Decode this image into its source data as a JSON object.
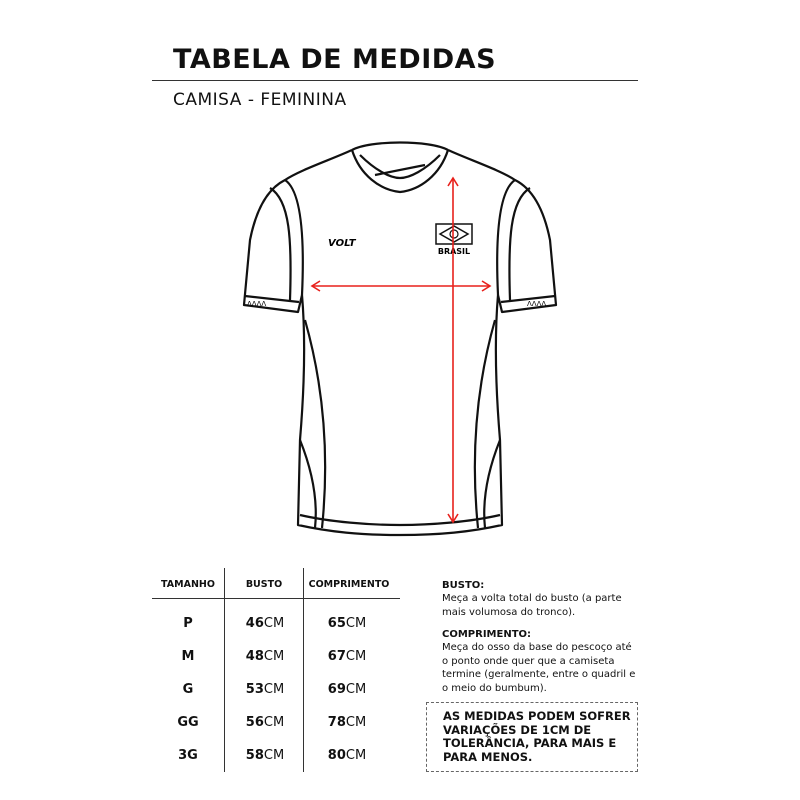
{
  "header": {
    "title": "TABELA DE MEDIDAS",
    "subtitle": "CAMISA - FEMININA"
  },
  "shirt": {
    "brand_logo": "VOLT",
    "badge_text": "BRASIL",
    "arrow_color": "#e8211c"
  },
  "table": {
    "headers": [
      "TAMANHO",
      "BUSTO",
      "COMPRIMENTO"
    ],
    "unit": "CM",
    "rows": [
      {
        "size": "P",
        "busto": "46",
        "comprimento": "65"
      },
      {
        "size": "M",
        "busto": "48",
        "comprimento": "67"
      },
      {
        "size": "G",
        "busto": "53",
        "comprimento": "69"
      },
      {
        "size": "GG",
        "busto": "56",
        "comprimento": "78"
      },
      {
        "size": "3G",
        "busto": "58",
        "comprimento": "80"
      }
    ]
  },
  "instructions": {
    "busto_label": "BUSTO:",
    "busto_text": "Meça a volta total do busto (a parte mais volumosa do tronco).",
    "comprimento_label": "COMPRIMENTO:",
    "comprimento_text": "Meça do osso da base do pescoço até o ponto onde quer que a camiseta termine (geralmente, entre o quadril e o meio do bumbum).",
    "note": "AS MEDIDAS PODEM SOFRER VARIAÇÕES DE 1CM DE TOLERÂNCIA, PARA MAIS E PARA MENOS."
  }
}
